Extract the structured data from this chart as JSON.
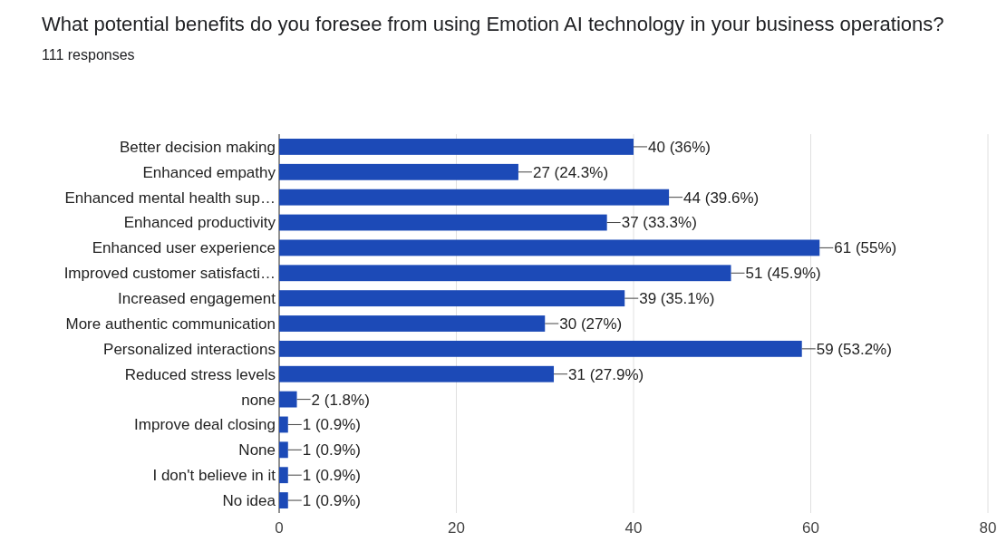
{
  "chart_data": {
    "type": "bar",
    "orientation": "horizontal",
    "title": "What potential benefits do you foresee from using Emotion AI technology in your business operations?",
    "subtitle": "111 responses",
    "categories": [
      "Better decision making",
      "Enhanced empathy",
      "Enhanced mental health sup…",
      "Enhanced productivity",
      "Enhanced user experience",
      "Improved customer satisfacti…",
      "Increased engagement",
      "More authentic communication",
      "Personalized interactions",
      "Reduced stress levels",
      "none",
      "Improve deal closing",
      "None",
      "I don't believe in it",
      "No idea"
    ],
    "values": [
      40,
      27,
      44,
      37,
      61,
      51,
      39,
      30,
      59,
      31,
      2,
      1,
      1,
      1,
      1
    ],
    "value_labels": [
      "40 (36%)",
      "27 (24.3%)",
      "44 (39.6%)",
      "37 (33.3%)",
      "61 (55%)",
      "51 (45.9%)",
      "39 (35.1%)",
      "30 (27%)",
      "59 (53.2%)",
      "31 (27.9%)",
      "2 (1.8%)",
      "1 (0.9%)",
      "1 (0.9%)",
      "1 (0.9%)",
      "1 (0.9%)"
    ],
    "color": "#1c4ab7",
    "xlim": [
      0,
      80
    ],
    "xticks": [
      0,
      20,
      40,
      60,
      80
    ],
    "grid": "x"
  }
}
